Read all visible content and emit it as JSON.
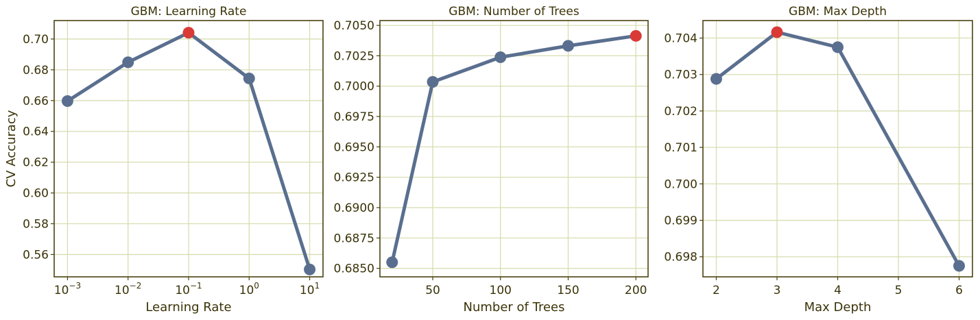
{
  "colors": {
    "line": "#5a6f8f",
    "marker": "#5a6f8f",
    "best_marker": "#d93a35",
    "grid": "#d8ddb0",
    "frame": "#4a4210",
    "text": "#3a3308"
  },
  "chart_data": [
    {
      "type": "line",
      "title": "GBM: Learning Rate",
      "xlabel": "Learning Rate",
      "ylabel": "CV Accuracy",
      "x_scale": "log",
      "x": [
        0.001,
        0.01,
        0.1,
        1,
        10
      ],
      "x_tick_labels": [
        {
          "base": "10",
          "exp": "−3"
        },
        {
          "base": "10",
          "exp": "−2"
        },
        {
          "base": "10",
          "exp": "−1"
        },
        {
          "base": "10",
          "exp": "0"
        },
        {
          "base": "10",
          "exp": "1"
        }
      ],
      "y": [
        0.6597,
        0.6849,
        0.7041,
        0.6744,
        0.5503
      ],
      "best_index": 2,
      "ylim": [
        0.5455,
        0.712
      ],
      "y_ticks": [
        "0.56",
        "0.58",
        "0.60",
        "0.62",
        "0.64",
        "0.66",
        "0.68",
        "0.70"
      ],
      "grid": true
    },
    {
      "type": "line",
      "title": "GBM: Number of Trees",
      "xlabel": "Number of Trees",
      "ylabel": "",
      "x_scale": "linear",
      "x": [
        20,
        50,
        100,
        150,
        200
      ],
      "x_ticks": [
        "50",
        "100",
        "150",
        "200"
      ],
      "y": [
        0.6855,
        0.70035,
        0.70238,
        0.70332,
        0.70414
      ],
      "best_index": 4,
      "ylim": [
        0.6843,
        0.7054
      ],
      "y_ticks": [
        "0.6850",
        "0.6875",
        "0.6900",
        "0.6925",
        "0.6950",
        "0.6975",
        "0.7000",
        "0.7025",
        "0.7050"
      ],
      "grid": true
    },
    {
      "type": "line",
      "title": "GBM: Max Depth",
      "xlabel": "Max Depth",
      "ylabel": "",
      "x_scale": "linear",
      "x": [
        2,
        3,
        4,
        6
      ],
      "x_ticks": [
        "2",
        "3",
        "4",
        "5",
        "6"
      ],
      "y": [
        0.70288,
        0.70416,
        0.70375,
        0.69775
      ],
      "best_index": 1,
      "ylim": [
        0.69745,
        0.70448
      ],
      "y_ticks": [
        "0.698",
        "0.699",
        "0.700",
        "0.701",
        "0.702",
        "0.703",
        "0.704"
      ],
      "grid": true
    }
  ]
}
